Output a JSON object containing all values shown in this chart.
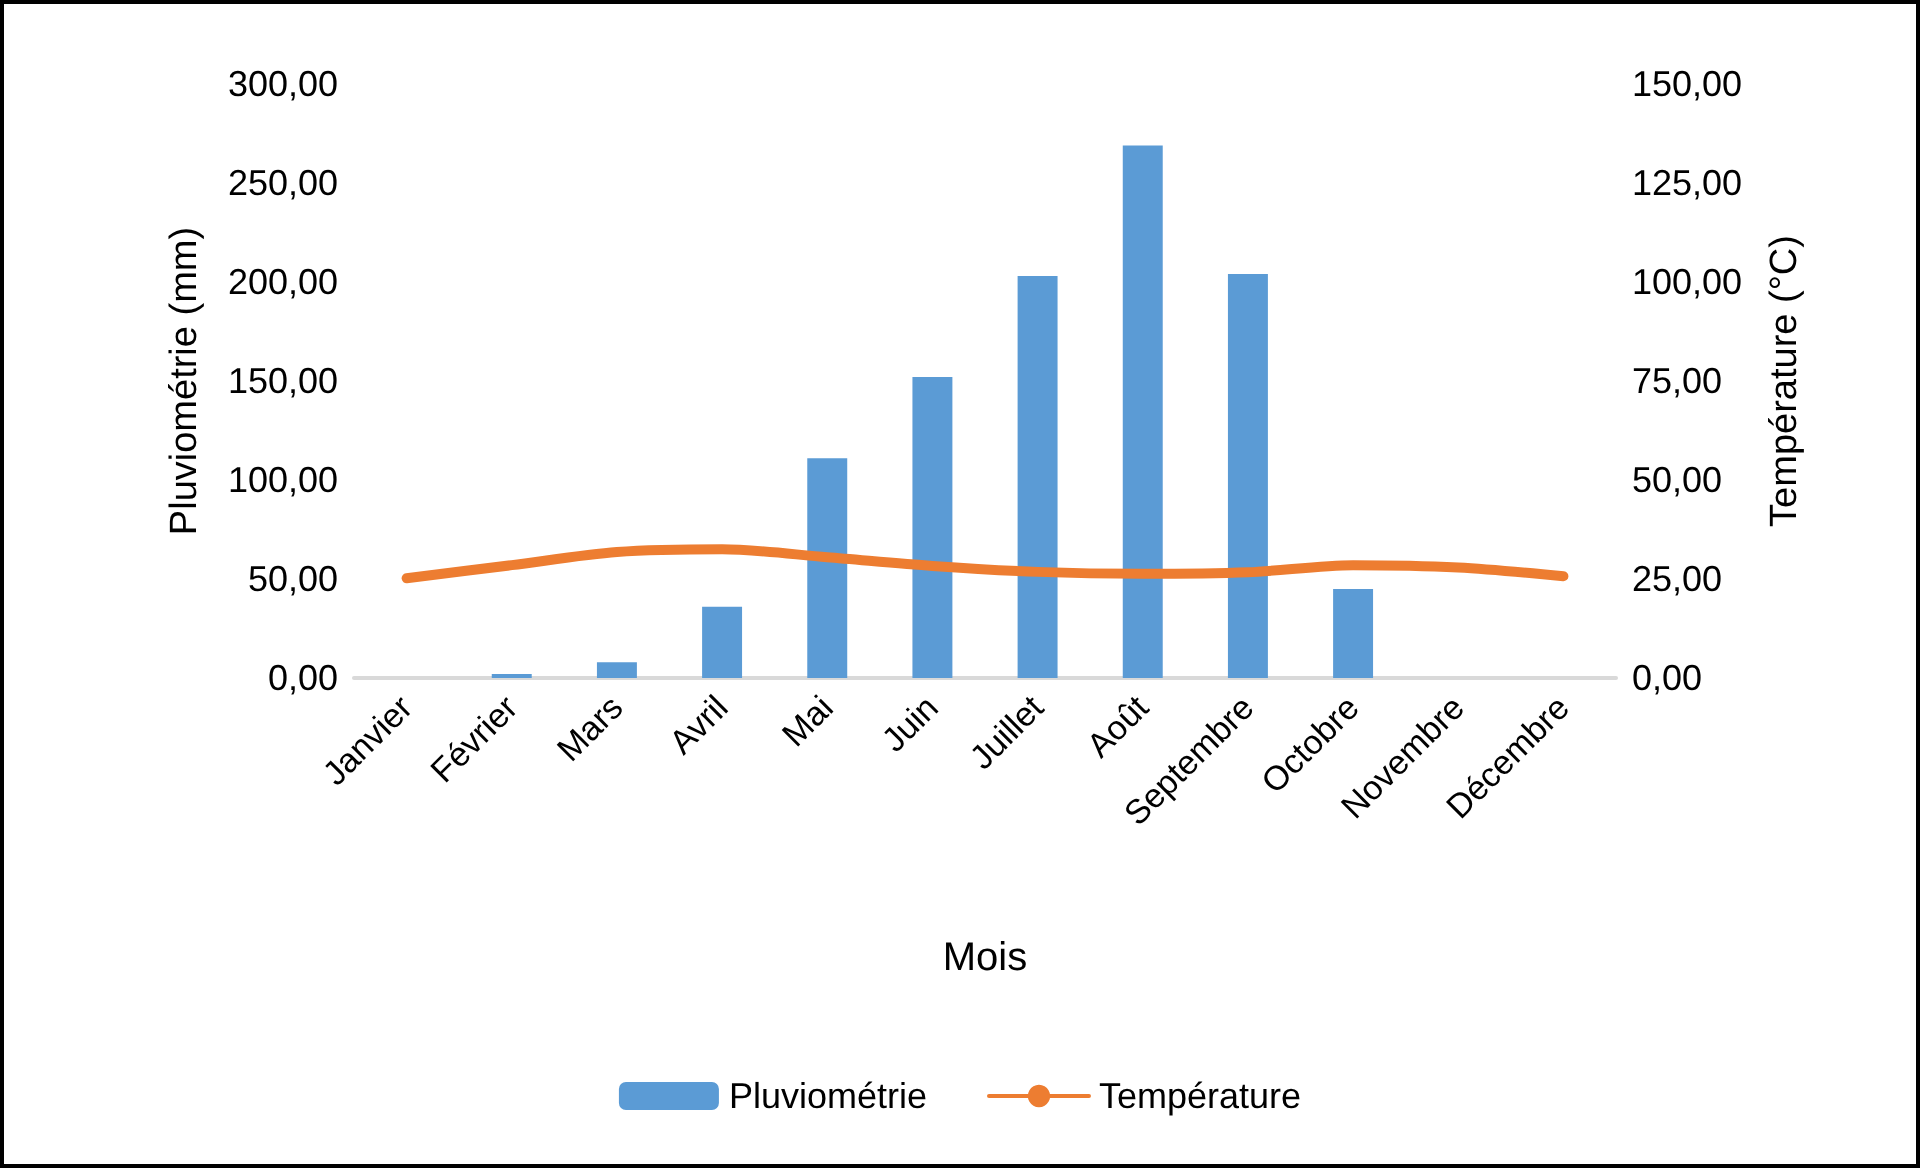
{
  "chart_data": {
    "type": "bar",
    "xlabel": "Mois",
    "ylabel": "Pluviométrie (mm)",
    "y2label": "Température (°C)",
    "categories": [
      "Janvier",
      "Février",
      "Mars",
      "Avril",
      "Mai",
      "Juin",
      "Juillet",
      "Août",
      "Septembre",
      "Octobre",
      "Novembre",
      "Décembre"
    ],
    "series": [
      {
        "name": "Pluviométrie",
        "color": "#5b9bd5",
        "values": [
          0,
          2,
          8,
          36,
          111,
          152,
          203,
          269,
          204,
          45,
          0,
          0
        ]
      },
      {
        "name": "Température",
        "type": "line",
        "axis": "y2",
        "color": "#ed7d31",
        "values": [
          25.2,
          28.5,
          31.8,
          32.5,
          30.5,
          28.3,
          26.8,
          26.3,
          26.7,
          28.5,
          27.9,
          25.7
        ]
      }
    ],
    "ylim": [
      0,
      300
    ],
    "yticks": [
      {
        "value": 0,
        "label": "0,00"
      },
      {
        "value": 50,
        "label": "50,00"
      },
      {
        "value": 100,
        "label": "100,00"
      },
      {
        "value": 150,
        "label": "150,00"
      },
      {
        "value": 200,
        "label": "200,00"
      },
      {
        "value": 250,
        "label": "250,00"
      },
      {
        "value": 300,
        "label": "300,00"
      }
    ],
    "y2lim": [
      0,
      150
    ],
    "y2ticks": [
      {
        "value": 0,
        "label": "0,00"
      },
      {
        "value": 25,
        "label": "25,00"
      },
      {
        "value": 50,
        "label": "50,00"
      },
      {
        "value": 75,
        "label": "75,00"
      },
      {
        "value": 100,
        "label": "100,00"
      },
      {
        "value": 125,
        "label": "125,00"
      },
      {
        "value": 150,
        "label": "150,00"
      }
    ],
    "grid": false,
    "legend": "bottom",
    "marker": "none",
    "line_style": "solid"
  }
}
